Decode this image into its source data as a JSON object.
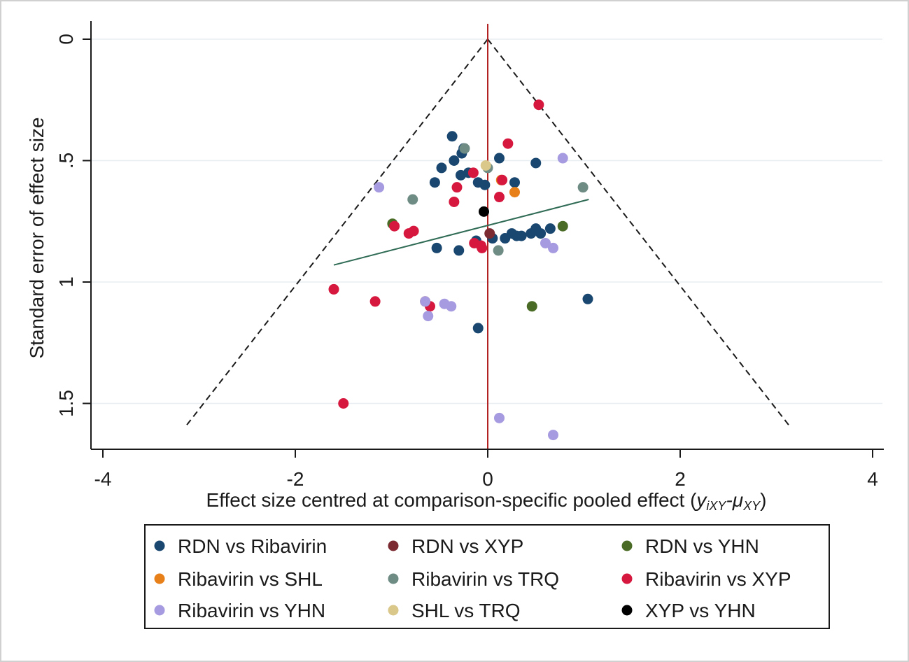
{
  "chart_data": {
    "type": "scatter",
    "title": "",
    "xlabel": "Effect size centred at comparison-specific pooled effect (",
    "xlabel_math_y": "y",
    "xlabel_math_sub1": "iXY",
    "xlabel_math_sep": "-",
    "xlabel_math_mu": "μ",
    "xlabel_math_sub2": "XY",
    "xlabel_close": ")",
    "ylabel": "Standard error of effect size",
    "xlim": [
      -4.1,
      4.2
    ],
    "ylim": [
      0,
      1.7
    ],
    "y_inverted": true,
    "xticks": [
      -4,
      -2,
      0,
      2,
      4
    ],
    "xtick_labels": [
      "-4",
      "-2",
      "0",
      "2",
      "4"
    ],
    "yticks": [
      0,
      0.5,
      1,
      1.5
    ],
    "ytick_labels": [
      "0",
      ".5",
      "1",
      "1.5"
    ],
    "grid": "horizontal",
    "funnel": {
      "apex": [
        0,
        0
      ],
      "base_se": 1.6,
      "base_left": -3.15,
      "base_right": 3.15
    },
    "reference_line_x": 0,
    "fit_line": {
      "start": [
        -1.6,
        0.93
      ],
      "end": [
        1.05,
        0.66
      ]
    },
    "colors": {
      "reference_line": "#b22222",
      "fit_line": "#2f6b55",
      "funnel": "#1a1a1a",
      "grid": "#e8eef1",
      "axis": "#1a1a1a"
    },
    "legend_position": "bottom",
    "series": [
      {
        "name": "RDN vs Ribavirin",
        "color": "#1a4770",
        "points": [
          [
            -0.37,
            0.4
          ],
          [
            -0.25,
            0.45
          ],
          [
            -0.27,
            0.47
          ],
          [
            -0.35,
            0.5
          ],
          [
            -0.48,
            0.53
          ],
          [
            -0.55,
            0.59
          ],
          [
            -0.28,
            0.56
          ],
          [
            -0.2,
            0.55
          ],
          [
            -0.1,
            0.59
          ],
          [
            -0.03,
            0.6
          ],
          [
            0.12,
            0.49
          ],
          [
            0.28,
            0.59
          ],
          [
            0.5,
            0.51
          ],
          [
            -0.53,
            0.86
          ],
          [
            -0.3,
            0.87
          ],
          [
            -0.12,
            0.83
          ],
          [
            0.05,
            0.82
          ],
          [
            0.18,
            0.82
          ],
          [
            0.25,
            0.8
          ],
          [
            0.3,
            0.81
          ],
          [
            0.35,
            0.81
          ],
          [
            0.45,
            0.8
          ],
          [
            0.5,
            0.78
          ],
          [
            0.55,
            0.8
          ],
          [
            0.65,
            0.78
          ],
          [
            1.04,
            1.07
          ],
          [
            -0.1,
            1.19
          ]
        ]
      },
      {
        "name": "RDN vs XYP",
        "color": "#7a2a30",
        "points": [
          [
            0.02,
            0.8
          ]
        ]
      },
      {
        "name": "RDN vs YHN",
        "color": "#4a6b25",
        "points": [
          [
            -0.99,
            0.76
          ],
          [
            0.78,
            0.77
          ],
          [
            0.46,
            1.1
          ]
        ]
      },
      {
        "name": "Ribavirin vs SHL",
        "color": "#e8801a",
        "points": [
          [
            0.14,
            0.58
          ],
          [
            0.28,
            0.63
          ],
          [
            -0.65,
            1.08
          ]
        ]
      },
      {
        "name": "Ribavirin vs TRQ",
        "color": "#6e8c84",
        "points": [
          [
            -0.24,
            0.45
          ],
          [
            0.0,
            0.53
          ],
          [
            -0.78,
            0.66
          ],
          [
            0.99,
            0.61
          ],
          [
            0.11,
            0.87
          ]
        ]
      },
      {
        "name": "Ribavirin vs XYP",
        "color": "#d6173e",
        "points": [
          [
            0.53,
            0.27
          ],
          [
            0.21,
            0.43
          ],
          [
            -0.15,
            0.55
          ],
          [
            0.15,
            0.58
          ],
          [
            -0.32,
            0.61
          ],
          [
            0.12,
            0.65
          ],
          [
            -0.35,
            0.67
          ],
          [
            -0.97,
            0.77
          ],
          [
            -0.77,
            0.79
          ],
          [
            -0.82,
            0.8
          ],
          [
            -0.14,
            0.84
          ],
          [
            -0.07,
            0.85
          ],
          [
            -0.06,
            0.86
          ],
          [
            -1.6,
            1.03
          ],
          [
            -1.17,
            1.08
          ],
          [
            -0.6,
            1.1
          ],
          [
            -1.5,
            1.5
          ]
        ]
      },
      {
        "name": "Ribavirin vs YHN",
        "color": "#a69ae0",
        "points": [
          [
            0.78,
            0.49
          ],
          [
            -1.13,
            0.61
          ],
          [
            0.6,
            0.84
          ],
          [
            0.68,
            0.86
          ],
          [
            -0.65,
            1.08
          ],
          [
            -0.45,
            1.09
          ],
          [
            -0.38,
            1.1
          ],
          [
            -0.62,
            1.14
          ],
          [
            0.12,
            1.56
          ],
          [
            0.68,
            1.63
          ]
        ]
      },
      {
        "name": "SHL vs TRQ",
        "color": "#d9c88a",
        "points": [
          [
            -0.02,
            0.52
          ]
        ]
      },
      {
        "name": "XYP vs YHN",
        "color": "#000000",
        "points": [
          [
            -0.04,
            0.71
          ]
        ]
      }
    ]
  }
}
